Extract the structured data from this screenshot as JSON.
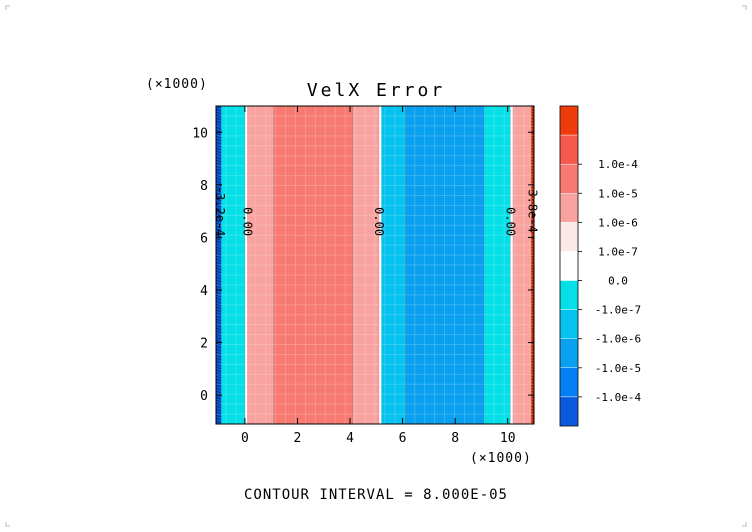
{
  "chart_data": {
    "type": "heatmap",
    "title": "VelX Error",
    "x_scale_label": "(×1000)",
    "y_scale_label": "(×1000)",
    "xlim": [
      -1.1,
      11.0
    ],
    "ylim": [
      -1.1,
      11.0
    ],
    "x_ticks": [
      0,
      2,
      4,
      6,
      8,
      10
    ],
    "y_ticks": [
      0,
      2,
      4,
      6,
      8,
      10
    ],
    "x_tick_labels": [
      "0",
      "2",
      "4",
      "6",
      "8",
      "10"
    ],
    "y_tick_labels": [
      "0",
      "2",
      "4",
      "6",
      "8",
      "10"
    ],
    "footer": "CONTOUR INTERVAL = 8.000E-05",
    "colorbar": {
      "levels": [
        {
          "label": "",
          "color": "#ee3b0b"
        },
        {
          "label": "1.0e-4",
          "color": "#f55a4c"
        },
        {
          "label": "1.0e-5",
          "color": "#f77a72"
        },
        {
          "label": "1.0e-6",
          "color": "#f9a3a0"
        },
        {
          "label": "1.0e-7",
          "color": "#fbe8e8"
        },
        {
          "label": "0.0",
          "color": "#ffffff"
        },
        {
          "label": "-1.0e-7",
          "color": "#04dfe8"
        },
        {
          "label": "-1.0e-6",
          "color": "#04c3f0"
        },
        {
          "label": "-1.0e-5",
          "color": "#0aa0f0"
        },
        {
          "label": "-1.0e-4",
          "color": "#0480f4"
        },
        {
          "label": "",
          "color": "#0a5ae0"
        }
      ]
    },
    "bands": [
      {
        "x0": -1.1,
        "x1": -0.9,
        "color": "#0a5ae0"
      },
      {
        "x0": -0.9,
        "x1": 0.0,
        "color": "#04dfe8"
      },
      {
        "x0": 0.0,
        "x1": 0.1,
        "color": "#ffffff"
      },
      {
        "x0": 0.1,
        "x1": 1.1,
        "color": "#f9a3a0"
      },
      {
        "x0": 1.1,
        "x1": 4.1,
        "color": "#f77a72"
      },
      {
        "x0": 4.1,
        "x1": 5.1,
        "color": "#f9a3a0"
      },
      {
        "x0": 5.1,
        "x1": 5.2,
        "color": "#ffffff"
      },
      {
        "x0": 5.2,
        "x1": 6.1,
        "color": "#04c3f0"
      },
      {
        "x0": 6.1,
        "x1": 9.1,
        "color": "#0aa0f0"
      },
      {
        "x0": 9.1,
        "x1": 10.1,
        "color": "#04dfe8"
      },
      {
        "x0": 10.1,
        "x1": 10.2,
        "color": "#ffffff"
      },
      {
        "x0": 10.2,
        "x1": 10.9,
        "color": "#f9a3a0"
      },
      {
        "x0": 10.9,
        "x1": 11.0,
        "color": "#ee3b0b"
      }
    ],
    "contour_labels": [
      {
        "x": 0.1,
        "y": 6.6,
        "text": "0.00"
      },
      {
        "x": 5.1,
        "y": 6.6,
        "text": "0.00"
      },
      {
        "x": 10.1,
        "y": 6.6,
        "text": "0.00"
      },
      {
        "x": -0.95,
        "y": 7.0,
        "text": "-3.2e-4"
      },
      {
        "x": 10.95,
        "y": 7.0,
        "text": "3.8e-4"
      }
    ]
  }
}
